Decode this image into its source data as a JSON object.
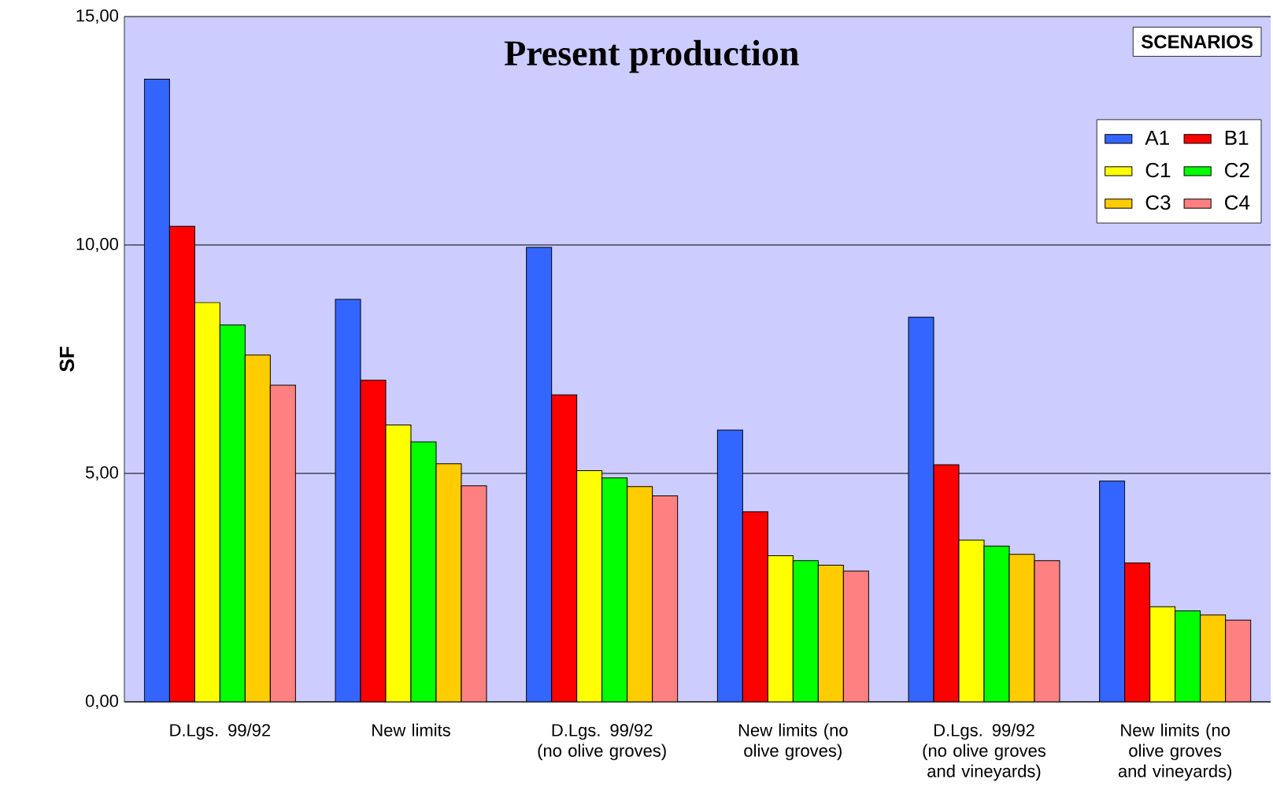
{
  "chart_data": {
    "type": "bar",
    "title": "Present production",
    "ylabel": "SF",
    "legend_title": "SCENARIOS",
    "categories": [
      "D.Lgs. 99/92",
      "New limits",
      "D.Lgs. 99/92 (no olive groves)",
      "New limits (no olive groves)",
      "D.Lgs. 99/92 (no olive groves and vineyards)",
      "New limits (no olive groves and vineyards)"
    ],
    "series": [
      {
        "name": "A1",
        "color": "#3366ff",
        "values": [
          13.63,
          8.81,
          9.95,
          5.95,
          8.42,
          4.83
        ]
      },
      {
        "name": "B1",
        "color": "#ff0000",
        "values": [
          10.41,
          7.04,
          6.72,
          4.16,
          5.19,
          3.04
        ]
      },
      {
        "name": "C1",
        "color": "#ffff00",
        "values": [
          8.74,
          6.06,
          5.06,
          3.2,
          3.54,
          2.08
        ]
      },
      {
        "name": "C2",
        "color": "#00ff00",
        "values": [
          8.25,
          5.69,
          4.9,
          3.09,
          3.41,
          1.99
        ]
      },
      {
        "name": "C3",
        "color": "#ffcc00",
        "values": [
          7.59,
          5.21,
          4.71,
          2.99,
          3.23,
          1.9
        ]
      },
      {
        "name": "C4",
        "color": "#ff8080",
        "values": [
          6.93,
          4.73,
          4.51,
          2.86,
          3.09,
          1.79
        ]
      }
    ],
    "ylim": [
      0,
      15
    ],
    "yticks": [
      {
        "value": 0,
        "label": "0,00"
      },
      {
        "value": 5,
        "label": "5,00"
      },
      {
        "value": 10,
        "label": "10,00"
      },
      {
        "value": 15,
        "label": "15,00"
      }
    ],
    "grid": "y",
    "legend": "top right"
  }
}
